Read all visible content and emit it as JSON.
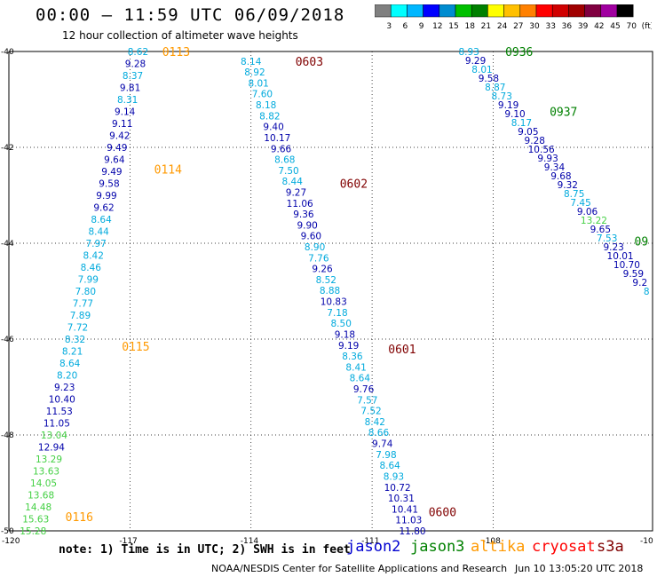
{
  "header": {
    "title": "00:00 — 11:59 UTC 06/09/2018",
    "subtitle": "12 hour collection of altimeter wave heights"
  },
  "colorbar": {
    "labels": [
      "3",
      "6",
      "9",
      "12",
      "15",
      "18",
      "21",
      "24",
      "27",
      "30",
      "33",
      "36",
      "39",
      "42",
      "45",
      "70",
      "(ft)"
    ],
    "colors": [
      "#808080",
      "#00ffff",
      "#00b7ff",
      "#0000ff",
      "#008cd0",
      "#00c000",
      "#008000",
      "#ffff00",
      "#ffc000",
      "#ff8000",
      "#ff0000",
      "#d00000",
      "#a00000",
      "#800040",
      "#a000a0",
      "#000000"
    ]
  },
  "axes": {
    "lat_labels": [
      "-40",
      "-42",
      "-44",
      "-46",
      "-48",
      "-50"
    ],
    "lon_labels": [
      "-120",
      "-117",
      "-114",
      "-111",
      "-108",
      "-10"
    ]
  },
  "legend": {
    "note": "note: 1) Time is in UTC; 2) SWH is in feet",
    "satellites": [
      {
        "name": "jason2",
        "color": "#0000d0"
      },
      {
        "name": "jason3",
        "color": "#008000"
      },
      {
        "name": "altika",
        "color": "#ff9900"
      },
      {
        "name": "cryosat",
        "color": "#ff0000"
      },
      {
        "name": "s3a",
        "color": "#800000"
      }
    ]
  },
  "footer": {
    "credit": "NOAA/NESDIS Center for Satellite Applications and Research",
    "date": "Jun 10 13:05:20 UTC 2018"
  },
  "time_labels": [
    {
      "text": "0113",
      "lon": -116.2,
      "lat": -40.0,
      "color": "#ff9900"
    },
    {
      "text": "0114",
      "lon": -116.4,
      "lat": -42.45,
      "color": "#ff9900"
    },
    {
      "text": "0115",
      "lon": -117.2,
      "lat": -46.15,
      "color": "#ff9900"
    },
    {
      "text": "0116",
      "lon": -118.6,
      "lat": -49.7,
      "color": "#ff9900"
    },
    {
      "text": "0603",
      "lon": -112.9,
      "lat": -40.2,
      "color": "#800000"
    },
    {
      "text": "0602",
      "lon": -111.8,
      "lat": -42.75,
      "color": "#800000"
    },
    {
      "text": "0601",
      "lon": -110.6,
      "lat": -46.2,
      "color": "#800000"
    },
    {
      "text": "0600",
      "lon": -109.6,
      "lat": -49.6,
      "color": "#800000"
    },
    {
      "text": "0936",
      "lon": -107.7,
      "lat": -40.0,
      "color": "#008000"
    },
    {
      "text": "0937",
      "lon": -106.6,
      "lat": -41.25,
      "color": "#008000"
    },
    {
      "text": "09",
      "lon": -104.5,
      "lat": -43.95,
      "color": "#008000"
    }
  ],
  "tracks": [
    {
      "name": "altika-track",
      "start": [
        -116.8,
        -40.0
      ],
      "end": [
        -119.4,
        -50.0
      ],
      "values": [
        "8.62",
        "9.28",
        "8.37",
        "9.81",
        "8.31",
        "9.14",
        "9.11",
        "9.42",
        "9.49",
        "9.64",
        "9.49",
        "9.58",
        "9.99",
        "9.62",
        "8.64",
        "8.44",
        "7.97",
        "8.42",
        "8.46",
        "7.99",
        "7.80",
        "7.77",
        "7.89",
        "7.72",
        "8.32",
        "8.21",
        "8.64",
        "8.20",
        "9.23",
        "10.40",
        "11.53",
        "11.05",
        "13.04",
        "12.94",
        "13.29",
        "13.63",
        "14.05",
        "13.68",
        "14.48",
        "15.63",
        "15.28"
      ]
    },
    {
      "name": "s3a-track",
      "start": [
        -114.0,
        -40.2
      ],
      "end": [
        -110.0,
        -50.0
      ],
      "values": [
        "8.14",
        "8.92",
        "8.01",
        "7.60",
        "8.18",
        "8.82",
        "9.40",
        "10.17",
        "9.66",
        "8.68",
        "7.50",
        "8.44",
        "9.27",
        "11.06",
        "9.36",
        "9.90",
        "9.60",
        "8.90",
        "7.76",
        "9.26",
        "8.52",
        "8.88",
        "10.83",
        "7.18",
        "8.50",
        "9.18",
        "9.19",
        "8.36",
        "8.41",
        "8.64",
        "9.76",
        "7.57",
        "7.52",
        "8.42",
        "8.66",
        "9.74",
        "7.98",
        "8.64",
        "8.93",
        "10.72",
        "10.31",
        "10.41",
        "11.03",
        "11.80"
      ]
    },
    {
      "name": "jason3-track",
      "start": [
        -108.6,
        -40.0
      ],
      "end": [
        -104.2,
        -45.0
      ],
      "values": [
        "8.93",
        "9.29",
        "8.01",
        "9.58",
        "8.87",
        "8.73",
        "9.19",
        "9.10",
        "8.17",
        "9.05",
        "9.28",
        "10.56",
        "9.93",
        "9.34",
        "9.68",
        "9.32",
        "8.75",
        "7.45",
        "9.06",
        "13.22",
        "9.65",
        "7.53",
        "9.23",
        "10.01",
        "10.70",
        "9.59",
        "9.2",
        "8"
      ]
    }
  ]
}
